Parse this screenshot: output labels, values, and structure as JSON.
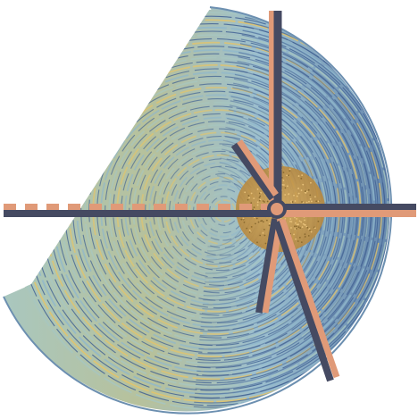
{
  "artwork": {
    "palette": {
      "background": "#ffffff",
      "ring_warm": "#e3c46a",
      "ring_cool": "#8fb7cc",
      "ring_deep": "#3f5f92",
      "ring_sage": "#a7c6c0",
      "core": "#c99a4a",
      "spoke_dark": "#454a62",
      "spoke_salmon": "#e09a78"
    }
  }
}
